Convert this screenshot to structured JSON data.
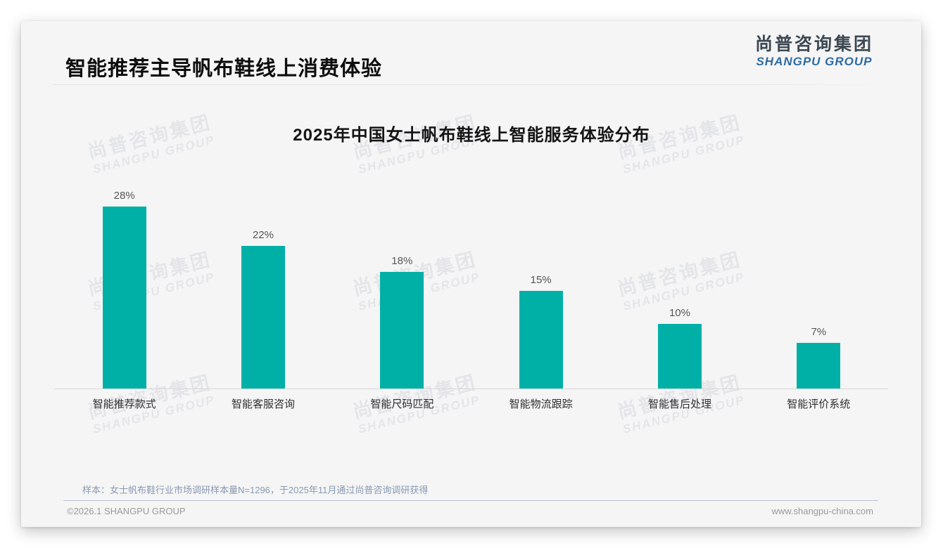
{
  "page": {
    "title": "智能推荐主导帆布鞋线上消费体验",
    "logo": {
      "cn": "尚普咨询集团",
      "en": "SHANGPU GROUP"
    },
    "watermark": {
      "cn": "尚普咨询集团",
      "en": "SHANGPU GROUP"
    },
    "note": "样本：女士帆布鞋行业市场调研样本量N=1296，于2025年11月通过尚普咨询调研获得",
    "footer": {
      "left": "©2026.1 SHANGPU GROUP",
      "right": "www.shangpu-china.com"
    }
  },
  "chart_data": {
    "type": "bar",
    "title": "2025年中国女士帆布鞋线上智能服务体验分布",
    "categories": [
      "智能推荐款式",
      "智能客服咨询",
      "智能尺码匹配",
      "智能物流跟踪",
      "智能售后处理",
      "智能评价系统"
    ],
    "values": [
      28,
      22,
      18,
      15,
      10,
      7
    ],
    "value_labels": [
      "28%",
      "22%",
      "18%",
      "15%",
      "10%",
      "7%"
    ],
    "ylabel": "",
    "xlabel": "",
    "ylim": [
      0,
      30
    ],
    "grid": false,
    "legend": false,
    "bar_color": "#00b0a6",
    "value_label_color": "#555555",
    "axis_line_color": "#d8d8d8"
  }
}
